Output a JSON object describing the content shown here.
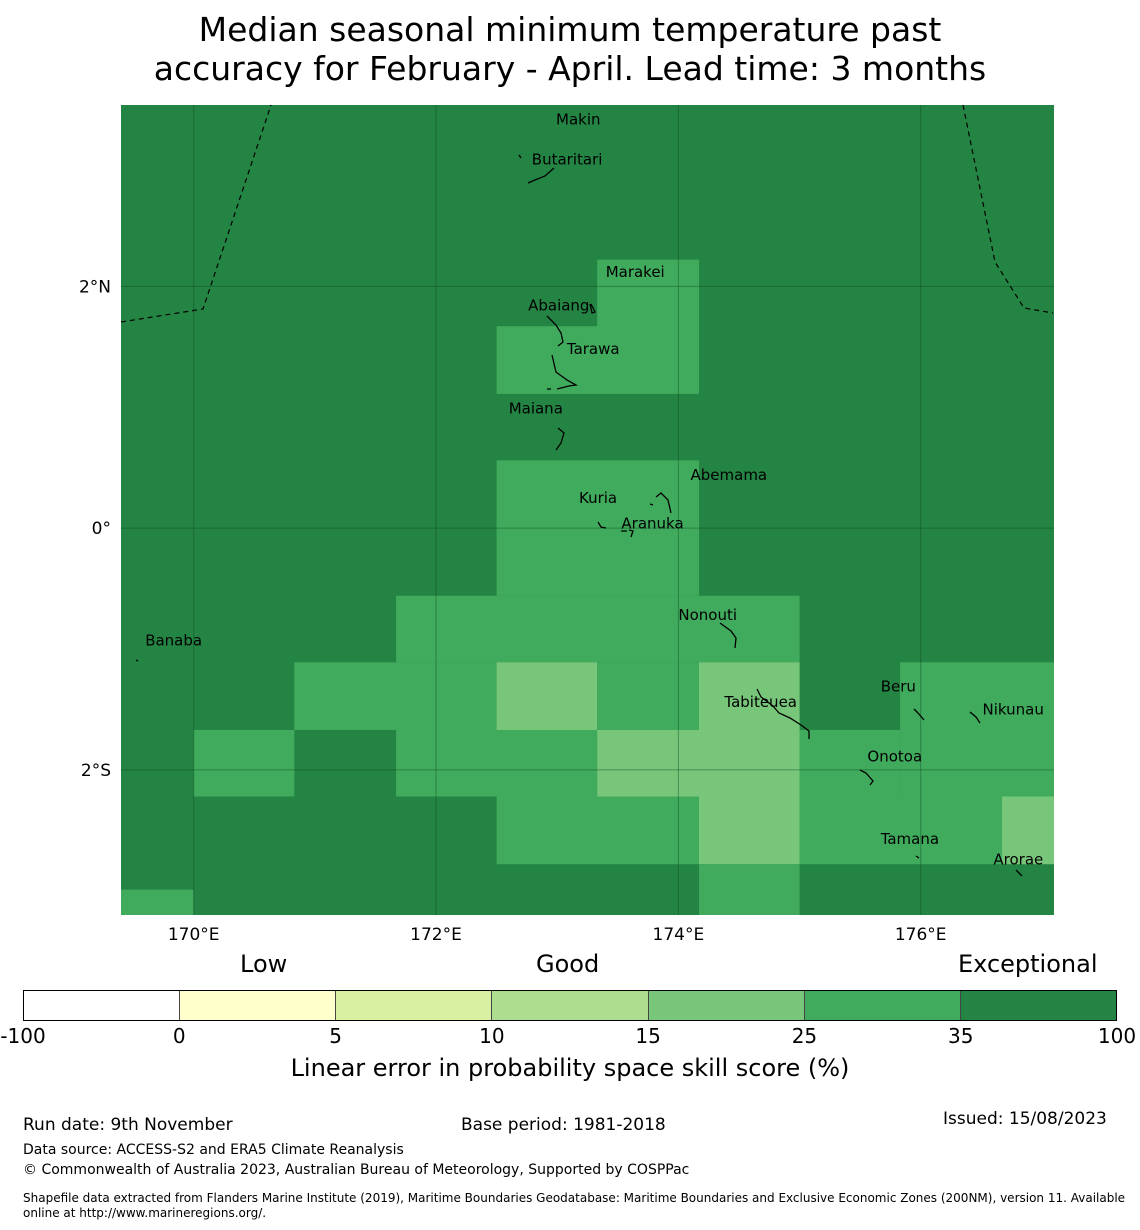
{
  "title": {
    "line1": "Median seasonal minimum temperature past",
    "line2": "accuracy for February - April. Lead time: 3 months"
  },
  "map": {
    "lon_range": [
      169.4,
      177.1
    ],
    "lat_range": [
      -3.2,
      3.5
    ],
    "lon_ticks": [
      {
        "value": 170,
        "label": "170°E"
      },
      {
        "value": 172,
        "label": "172°E"
      },
      {
        "value": 174,
        "label": "174°E"
      },
      {
        "value": 176,
        "label": "176°E"
      }
    ],
    "lat_ticks": [
      {
        "value": 2,
        "label": "2°N"
      },
      {
        "value": 0,
        "label": "0°"
      },
      {
        "value": -2,
        "label": "2°S"
      }
    ],
    "colors": {
      "exceptional": "#238443",
      "very_good": "#41ab5d",
      "good": "#78c679"
    },
    "skill_cells": [
      {
        "lon": [
          169.4,
          177.1
        ],
        "lat": [
          -3.2,
          3.5
        ],
        "category": "exceptional"
      },
      {
        "lon": [
          173.33,
          174.17
        ],
        "lat": [
          1.44,
          2.22
        ],
        "category": "very_good"
      },
      {
        "lon": [
          172.5,
          174.17
        ],
        "lat": [
          1.11,
          1.67
        ],
        "category": "very_good"
      },
      {
        "lon": [
          172.5,
          174.17
        ],
        "lat": [
          -0.56,
          0.56
        ],
        "category": "very_good"
      },
      {
        "lon": [
          171.67,
          175.0
        ],
        "lat": [
          -1.11,
          -0.56
        ],
        "category": "very_good"
      },
      {
        "lon": [
          170.83,
          172.5
        ],
        "lat": [
          -1.67,
          -1.11
        ],
        "category": "very_good"
      },
      {
        "lon": [
          172.5,
          173.33
        ],
        "lat": [
          -1.67,
          -1.11
        ],
        "category": "good"
      },
      {
        "lon": [
          173.33,
          174.17
        ],
        "lat": [
          -1.67,
          -1.11
        ],
        "category": "very_good"
      },
      {
        "lon": [
          174.17,
          175.0
        ],
        "lat": [
          -1.67,
          -1.11
        ],
        "category": "good"
      },
      {
        "lon": [
          175.83,
          177.1
        ],
        "lat": [
          -1.67,
          -1.11
        ],
        "category": "very_good"
      },
      {
        "lon": [
          170.0,
          170.83
        ],
        "lat": [
          -2.22,
          -1.67
        ],
        "category": "very_good"
      },
      {
        "lon": [
          171.67,
          173.33
        ],
        "lat": [
          -2.22,
          -1.67
        ],
        "category": "very_good"
      },
      {
        "lon": [
          173.33,
          175.0
        ],
        "lat": [
          -2.22,
          -1.67
        ],
        "category": "good"
      },
      {
        "lon": [
          175.0,
          175.83
        ],
        "lat": [
          -2.22,
          -1.67
        ],
        "category": "very_good"
      },
      {
        "lon": [
          175.83,
          177.1
        ],
        "lat": [
          -2.22,
          -1.67
        ],
        "category": "very_good"
      },
      {
        "lon": [
          172.5,
          174.17
        ],
        "lat": [
          -2.78,
          -2.22
        ],
        "category": "very_good"
      },
      {
        "lon": [
          174.17,
          175.0
        ],
        "lat": [
          -2.78,
          -2.22
        ],
        "category": "good"
      },
      {
        "lon": [
          175.0,
          176.67
        ],
        "lat": [
          -2.78,
          -2.22
        ],
        "category": "very_good"
      },
      {
        "lon": [
          176.67,
          177.1
        ],
        "lat": [
          -2.78,
          -2.22
        ],
        "category": "good"
      },
      {
        "lon": [
          169.4,
          170.0
        ],
        "lat": [
          -3.2,
          -2.99
        ],
        "category": "very_good"
      },
      {
        "lon": [
          174.17,
          175.0
        ],
        "lat": [
          -3.2,
          -2.78
        ],
        "category": "very_good"
      }
    ],
    "islands": [
      {
        "name": "Makin",
        "lon": 172.99,
        "lat": 3.38
      },
      {
        "name": "Butaritari",
        "lon": 172.79,
        "lat": 3.05
      },
      {
        "name": "Marakei",
        "lon": 173.4,
        "lat": 2.12
      },
      {
        "name": "Abaiang",
        "lon": 172.76,
        "lat": 1.84
      },
      {
        "name": "Tarawa",
        "lon": 173.08,
        "lat": 1.48
      },
      {
        "name": "Maiana",
        "lon": 172.6,
        "lat": 0.99
      },
      {
        "name": "Abemama",
        "lon": 174.1,
        "lat": 0.44
      },
      {
        "name": "Kuria",
        "lon": 173.18,
        "lat": 0.25
      },
      {
        "name": "Aranuka",
        "lon": 173.53,
        "lat": 0.04
      },
      {
        "name": "Nonouti",
        "lon": 174.0,
        "lat": -0.72
      },
      {
        "name": "Banaba",
        "lon": 169.6,
        "lat": -0.93
      },
      {
        "name": "Beru",
        "lon": 175.67,
        "lat": -1.31
      },
      {
        "name": "Tabiteuea",
        "lon": 174.38,
        "lat": -1.44
      },
      {
        "name": "Nikunau",
        "lon": 176.51,
        "lat": -1.5
      },
      {
        "name": "Onotoa",
        "lon": 175.56,
        "lat": -1.89
      },
      {
        "name": "Tamana",
        "lon": 175.67,
        "lat": -2.57
      },
      {
        "name": "Arorae",
        "lon": 176.6,
        "lat": -2.74
      }
    ]
  },
  "colorbar": {
    "categories": [
      "Low",
      "Good",
      "Exceptional"
    ],
    "segments": [
      "#ffffff",
      "#ffffcc",
      "#d9f0a3",
      "#addd8e",
      "#78c679",
      "#41ab5d",
      "#238443"
    ],
    "ticks": [
      "-100",
      "0",
      "5",
      "10",
      "15",
      "25",
      "35",
      "100"
    ],
    "title": "Linear error in probability space skill score (%)"
  },
  "footer": {
    "run_date": "Run date: 9th November",
    "base_period": "Base period: 1981-2018",
    "issued": "Issued: 15/08/2023",
    "data_source": "Data source: ACCESS-S2 and ERA5 Climate Reanalysis",
    "copyright": "© Commonwealth of Australia 2023, Australian Bureau of Meteorology, Supported by COSPPac",
    "shapefile": "Shapefile data extracted from Flanders Marine Institute (2019), Maritime Boundaries Geodatabase: Maritime Boundaries and Exclusive Economic Zones (200NM), version 11. Available online at http://www.marineregions.org/."
  }
}
